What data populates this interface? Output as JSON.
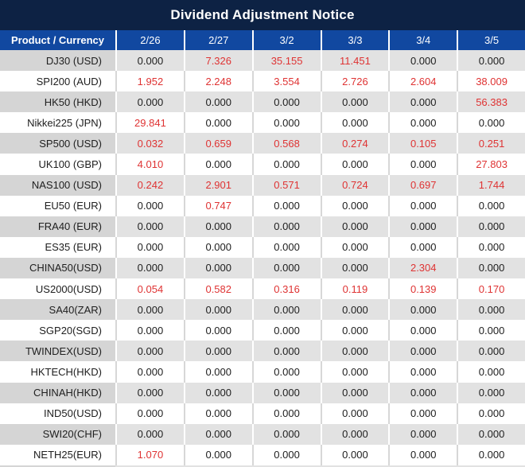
{
  "title": "Dividend Adjustment Notice",
  "colors": {
    "title_bar_bg": "#0d2244",
    "header_bg": "#1148a0",
    "header_text": "#ffffff",
    "shade_row_bg": "#e2e2e2",
    "shade_product_bg": "#d5d5d5",
    "plain_row_bg": "#ffffff",
    "value_nonzero_red": "#df3333",
    "value_zero_black": "#202020"
  },
  "chart_data": {
    "type": "table",
    "title": "Dividend Adjustment Notice",
    "columns": [
      "Product / Currency",
      "2/26",
      "2/27",
      "3/2",
      "3/3",
      "3/4",
      "3/5"
    ],
    "rows": [
      [
        "DJ30 (USD)",
        "0.000",
        "7.326",
        "35.155",
        "11.451",
        "0.000",
        "0.000"
      ],
      [
        "SPI200 (AUD)",
        "1.952",
        "2.248",
        "3.554",
        "2.726",
        "2.604",
        "38.009"
      ],
      [
        "HK50 (HKD)",
        "0.000",
        "0.000",
        "0.000",
        "0.000",
        "0.000",
        "56.383"
      ],
      [
        "Nikkei225 (JPN)",
        "29.841",
        "0.000",
        "0.000",
        "0.000",
        "0.000",
        "0.000"
      ],
      [
        "SP500 (USD)",
        "0.032",
        "0.659",
        "0.568",
        "0.274",
        "0.105",
        "0.251"
      ],
      [
        "UK100 (GBP)",
        "4.010",
        "0.000",
        "0.000",
        "0.000",
        "0.000",
        "27.803"
      ],
      [
        "NAS100 (USD)",
        "0.242",
        "2.901",
        "0.571",
        "0.724",
        "0.697",
        "1.744"
      ],
      [
        "EU50 (EUR)",
        "0.000",
        "0.747",
        "0.000",
        "0.000",
        "0.000",
        "0.000"
      ],
      [
        "FRA40 (EUR)",
        "0.000",
        "0.000",
        "0.000",
        "0.000",
        "0.000",
        "0.000"
      ],
      [
        "ES35 (EUR)",
        "0.000",
        "0.000",
        "0.000",
        "0.000",
        "0.000",
        "0.000"
      ],
      [
        "CHINA50(USD)",
        "0.000",
        "0.000",
        "0.000",
        "0.000",
        "2.304",
        "0.000"
      ],
      [
        "US2000(USD)",
        "0.054",
        "0.582",
        "0.316",
        "0.119",
        "0.139",
        "0.170"
      ],
      [
        "SA40(ZAR)",
        "0.000",
        "0.000",
        "0.000",
        "0.000",
        "0.000",
        "0.000"
      ],
      [
        "SGP20(SGD)",
        "0.000",
        "0.000",
        "0.000",
        "0.000",
        "0.000",
        "0.000"
      ],
      [
        "TWINDEX(USD)",
        "0.000",
        "0.000",
        "0.000",
        "0.000",
        "0.000",
        "0.000"
      ],
      [
        "HKTECH(HKD)",
        "0.000",
        "0.000",
        "0.000",
        "0.000",
        "0.000",
        "0.000"
      ],
      [
        "CHINAH(HKD)",
        "0.000",
        "0.000",
        "0.000",
        "0.000",
        "0.000",
        "0.000"
      ],
      [
        "IND50(USD)",
        "0.000",
        "0.000",
        "0.000",
        "0.000",
        "0.000",
        "0.000"
      ],
      [
        "SWI20(CHF)",
        "0.000",
        "0.000",
        "0.000",
        "0.000",
        "0.000",
        "0.000"
      ],
      [
        "NETH25(EUR)",
        "1.070",
        "0.000",
        "0.000",
        "0.000",
        "0.000",
        "0.000"
      ]
    ],
    "layout_hints": {
      "row_striping": "odd rows shaded gray, even rows white",
      "nonzero_values_colored": "red",
      "zero_values_colored": "black",
      "first_column_alignment": "right",
      "value_alignment": "center"
    }
  }
}
